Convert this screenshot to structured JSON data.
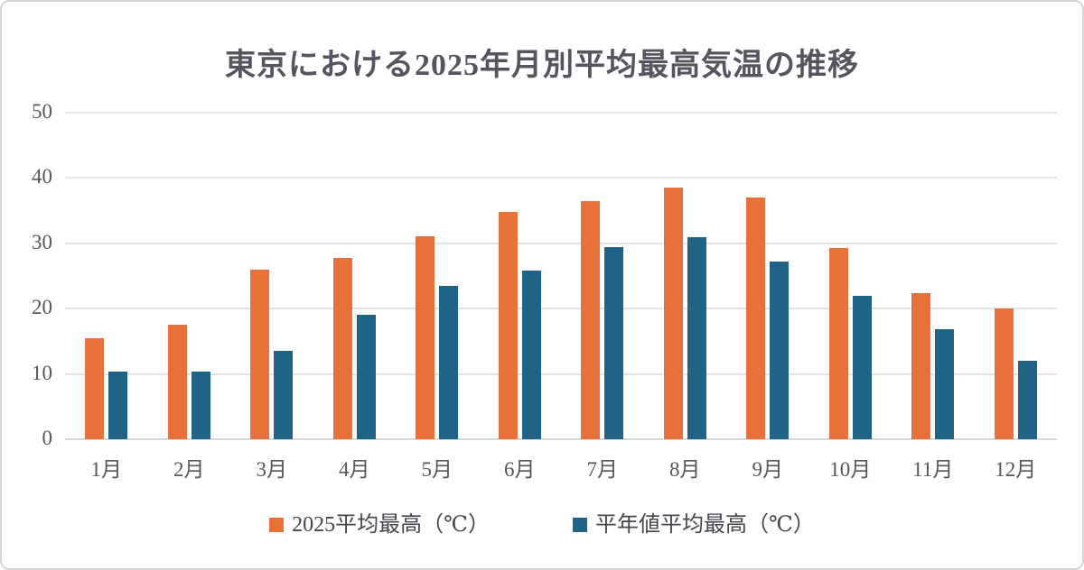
{
  "chart_data": {
    "type": "bar",
    "title": "東京における2025年月別平均最高気温の推移",
    "categories": [
      "1月",
      "2月",
      "3月",
      "4月",
      "5月",
      "6月",
      "7月",
      "8月",
      "9月",
      "10月",
      "11月",
      "12月"
    ],
    "series": [
      {
        "name": "2025平均最高（℃）",
        "color": "#e8713a",
        "values": [
          15.5,
          17.5,
          25.9,
          27.8,
          31.1,
          34.8,
          36.4,
          38.5,
          37.0,
          29.3,
          22.4,
          20.0
        ]
      },
      {
        "name": "平年値平均最高（℃）",
        "color": "#1f6387",
        "values": [
          10.4,
          10.3,
          13.5,
          19.0,
          23.5,
          25.8,
          29.4,
          31.0,
          27.2,
          22.0,
          16.8,
          12.0
        ]
      }
    ],
    "ylim": [
      0,
      50
    ],
    "yticks": [
      0,
      10,
      20,
      30,
      40,
      50
    ],
    "xlabel": "",
    "ylabel": "",
    "grid": true,
    "legend_position": "bottom"
  },
  "colors": {
    "grid": "#e4e4e8",
    "baseline": "#d8d8dc",
    "title_text": "#54555e",
    "axis_text": "#55565c",
    "legend_text": "#45464c",
    "card_border": "#d5d5da",
    "background": "#ffffff"
  }
}
